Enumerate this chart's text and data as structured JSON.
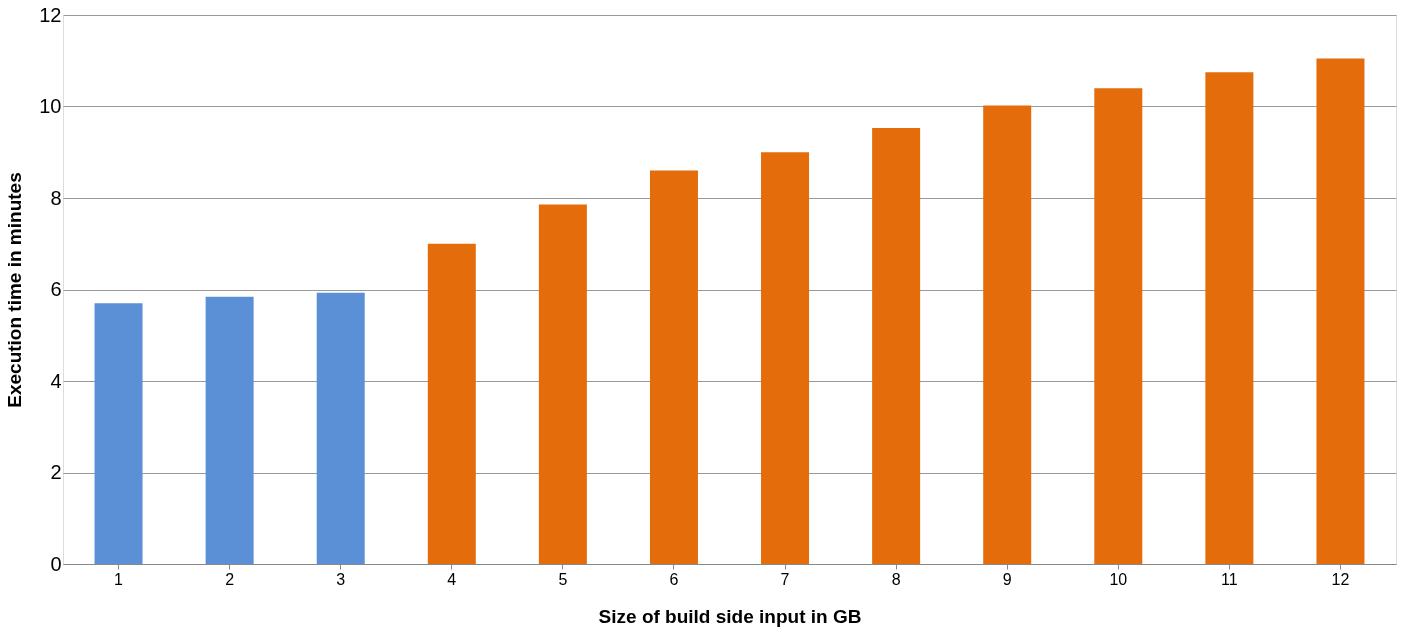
{
  "chart_data": {
    "type": "bar",
    "xlabel": "Size of build side input in GB",
    "ylabel": "Execution time in minutes",
    "categories": [
      "1",
      "2",
      "3",
      "4",
      "5",
      "6",
      "7",
      "8",
      "9",
      "10",
      "11",
      "12"
    ],
    "values": [
      5.7,
      5.84,
      5.93,
      7.0,
      7.86,
      8.6,
      9.0,
      9.53,
      10.02,
      10.4,
      10.75,
      11.05
    ],
    "colors": [
      "#5b8fd6",
      "#5b8fd6",
      "#5b8fd6",
      "#e46c0a",
      "#e46c0a",
      "#e46c0a",
      "#e46c0a",
      "#e46c0a",
      "#e46c0a",
      "#e46c0a",
      "#e46c0a",
      "#e46c0a"
    ],
    "ylim": [
      0,
      12
    ],
    "yticks": [
      0,
      2,
      4,
      6,
      8,
      10,
      12
    ],
    "grid": "y"
  }
}
